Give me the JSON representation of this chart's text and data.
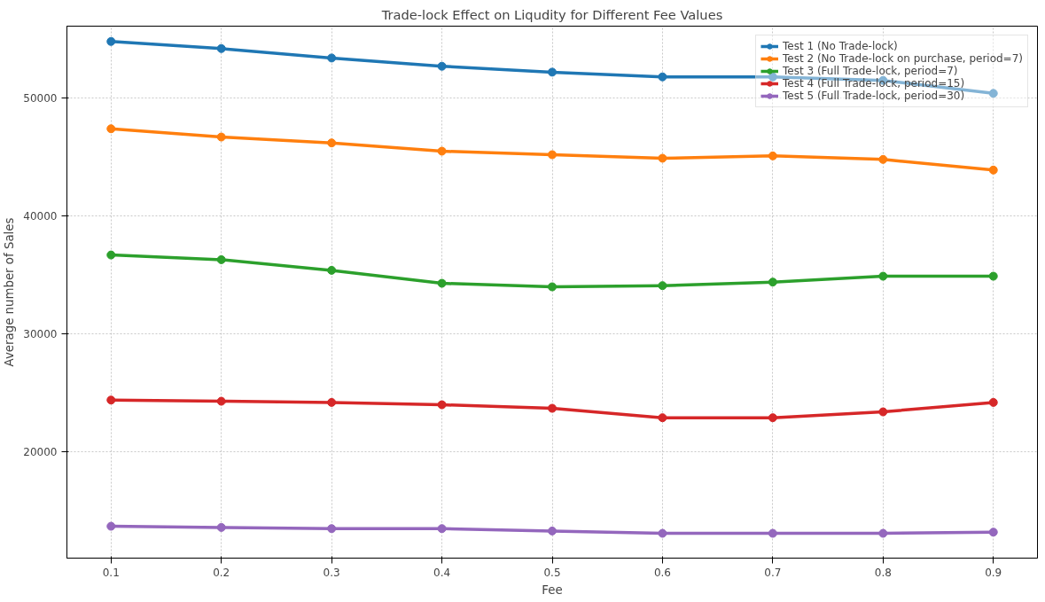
{
  "chart_data": {
    "type": "line",
    "title": "Trade-lock Effect on Liqudity for Different Fee Values",
    "xlabel": "Fee",
    "ylabel": "Average number of Sales",
    "x": [
      0.1,
      0.2,
      0.3,
      0.4,
      0.5,
      0.6,
      0.7,
      0.8,
      0.9
    ],
    "series": [
      {
        "name": "Test 1 (No Trade-lock)",
        "color": "#1f77b4",
        "values": [
          54800,
          54200,
          53400,
          52700,
          52200,
          51800,
          51800,
          51500,
          50400
        ]
      },
      {
        "name": "Test 2 (No Trade-lock on purchase, period=7)",
        "color": "#ff7f0e",
        "values": [
          47400,
          46700,
          46200,
          45500,
          45200,
          44900,
          45100,
          44800,
          43900
        ]
      },
      {
        "name": "Test 3 (Full Trade-lock, period=7)",
        "color": "#2ca02c",
        "values": [
          36700,
          36300,
          35400,
          34300,
          34000,
          34100,
          34400,
          34900,
          34900
        ]
      },
      {
        "name": "Test 4 (Full Trade-lock, period=15)",
        "color": "#d62728",
        "values": [
          24400,
          24300,
          24200,
          24000,
          23700,
          22900,
          22900,
          23400,
          24200
        ]
      },
      {
        "name": "Test 5 (Full Trade-lock, period=30)",
        "color": "#9467bd",
        "values": [
          13700,
          13600,
          13500,
          13500,
          13300,
          13100,
          13100,
          13100,
          13200
        ]
      }
    ],
    "xlim": [
      0.06,
      0.94
    ],
    "ylim": [
      11000,
      56100
    ],
    "xticks": [
      0.1,
      0.2,
      0.3,
      0.4,
      0.5,
      0.6,
      0.7,
      0.8,
      0.9
    ],
    "yticks": [
      20000,
      30000,
      40000,
      50000
    ],
    "grid": true,
    "legend": "top right",
    "marker": "circle",
    "line_style": "solid"
  }
}
